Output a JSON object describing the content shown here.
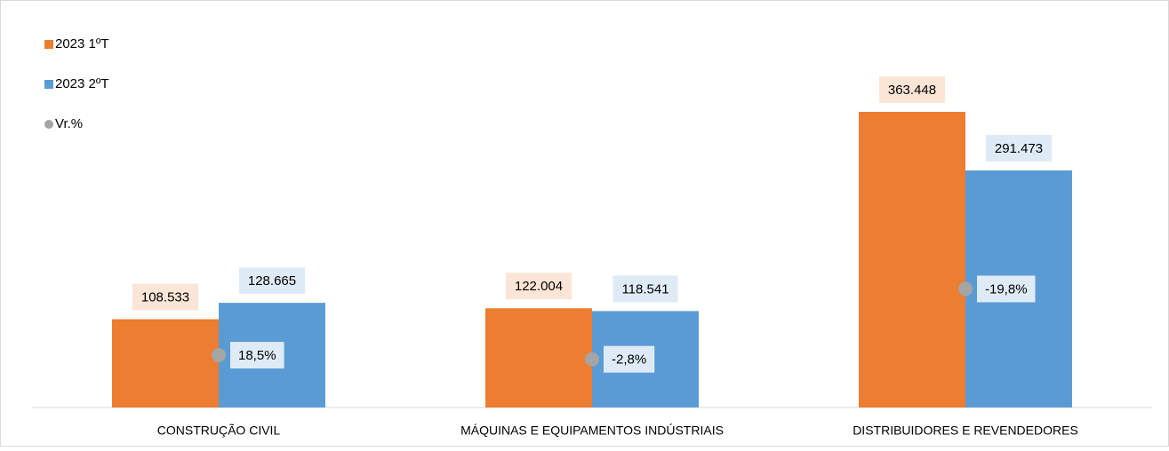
{
  "chart_data": {
    "type": "bar",
    "categories": [
      "CONSTRUÇÃO CIVIL",
      "MÁQUINAS E EQUIPAMENTOS INDÚSTRIAIS",
      "DISTRIBUIDORES E REVENDEDORES"
    ],
    "series": [
      {
        "name": "2023 1ºT",
        "color": "#ed7d31",
        "values": [
          108533,
          122004,
          363448
        ],
        "value_labels": [
          "108.533",
          "122.004",
          "363.448"
        ]
      },
      {
        "name": "2023 2ºT",
        "color": "#5b9bd5",
        "values": [
          128665,
          118541,
          291473
        ],
        "value_labels": [
          "128.665",
          "118.541",
          "291.473"
        ]
      },
      {
        "name": "Vr.%",
        "color": "#a5a5a5",
        "type": "dot",
        "values": [
          18.5,
          -2.8,
          -19.8
        ],
        "value_labels": [
          "18,5%",
          "-2,8%",
          "-19,8%"
        ]
      }
    ],
    "ylim": [
      0,
      400000
    ],
    "legend": "top-left"
  }
}
